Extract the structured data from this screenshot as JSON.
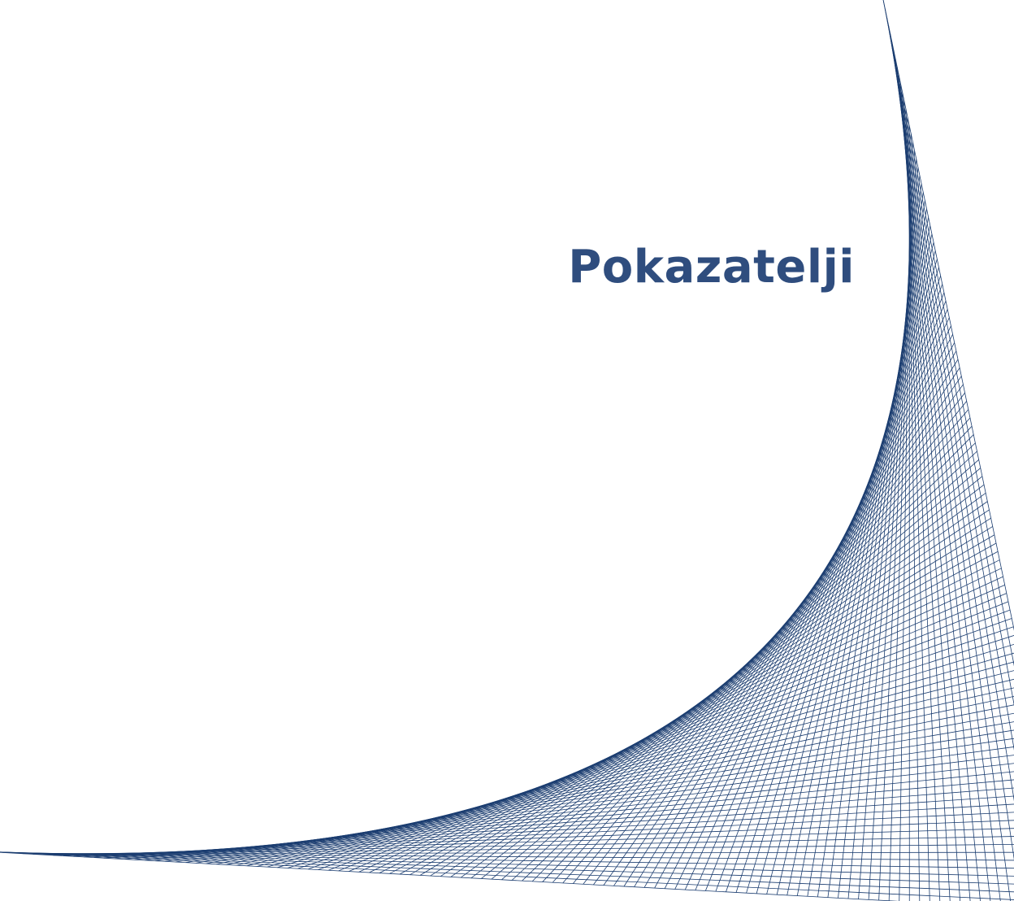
{
  "title": "Pokazatelji"
}
